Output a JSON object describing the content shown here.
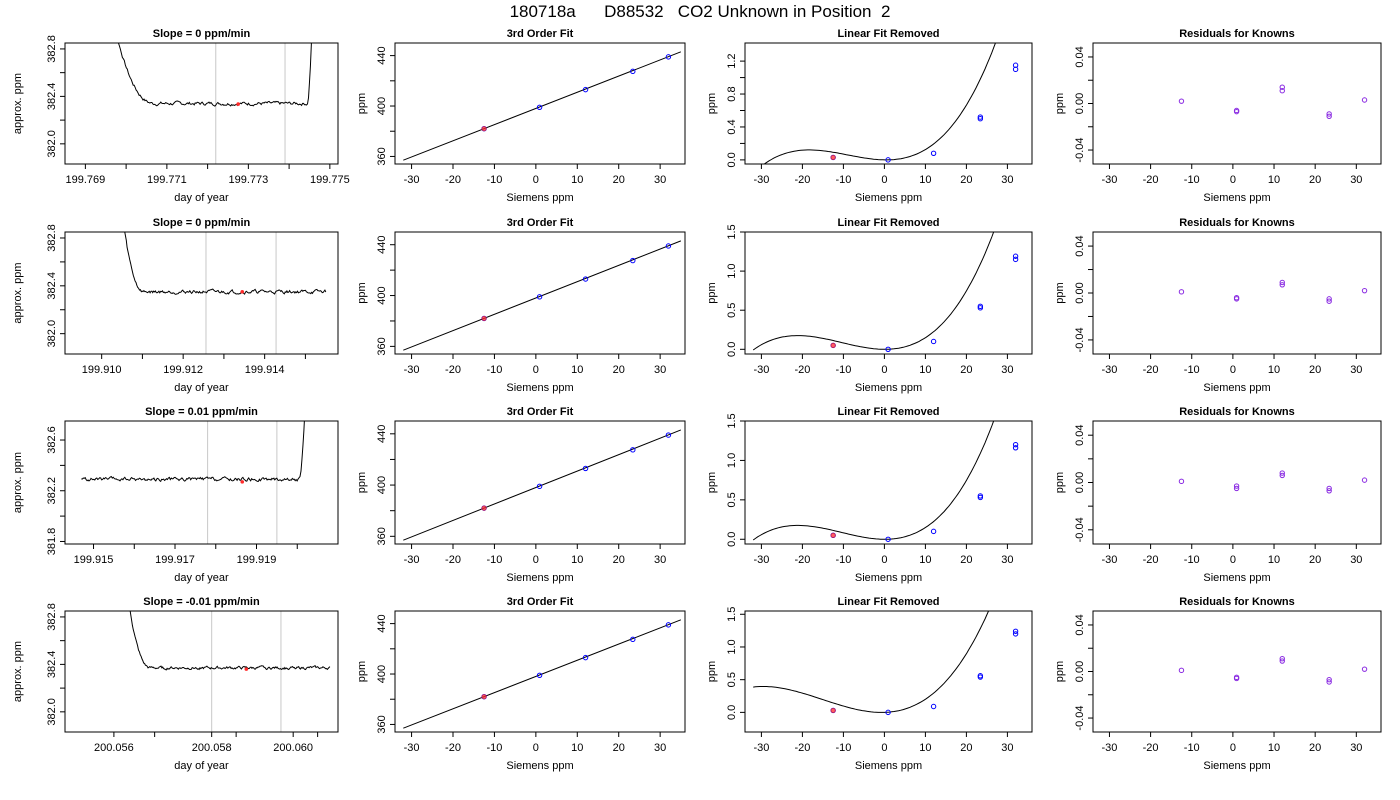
{
  "page_title": "180718a      D88532   CO2 Unknown in Position  2",
  "chart_data": [
    {
      "type": "line",
      "row": 1,
      "col": 1,
      "title": "Slope =  0  ppm/min",
      "xlabel": "day of year",
      "ylabel": "approx. ppm",
      "xlim": [
        199.7685,
        199.7752
      ],
      "ylim": [
        381.83,
        382.85
      ],
      "xticks": [
        {
          "v": 199.769,
          "label": "199.769"
        },
        {
          "v": 199.771,
          "label": "199.771"
        },
        {
          "v": 199.773,
          "label": "199.773"
        },
        {
          "v": 199.775,
          "label": "199.775"
        }
      ],
      "xminor": [
        199.77,
        199.772,
        199.774
      ],
      "yticks": [
        {
          "v": 382.0,
          "label": "382.0"
        },
        {
          "v": 382.4,
          "label": "382.4"
        },
        {
          "v": 382.8,
          "label": "382.8"
        }
      ],
      "yminor": [
        382.2,
        382.6
      ],
      "vlines": [
        199.7722,
        199.7739
      ],
      "trace": {
        "x_start": 199.7694,
        "x_end": 199.7752,
        "baseline": 382.34,
        "noise": 0.012,
        "left_decay": {
          "x0": 199.7694,
          "x1": 199.7707,
          "amp": 1.2
        },
        "right_rise": {
          "x0": 199.77445,
          "x1": 199.7746,
          "amp": 1.0
        }
      },
      "highlight": {
        "x": 199.77275,
        "y": 382.335
      }
    },
    {
      "type": "scatter",
      "row": 1,
      "col": 2,
      "title": "3rd Order Fit",
      "xlabel": "Siemens ppm",
      "ylabel": "ppm",
      "xlim": [
        -34,
        36
      ],
      "ylim": [
        354,
        450
      ],
      "xticks": [
        -30,
        -20,
        -10,
        0,
        10,
        20,
        30
      ],
      "yticks": [
        {
          "v": 360,
          "label": "360"
        },
        {
          "v": 400,
          "label": "400"
        },
        {
          "v": 440,
          "label": "440"
        }
      ],
      "yminor": [
        380,
        420
      ],
      "points": [
        [
          -12.5,
          382
        ],
        [
          0.9,
          399
        ],
        [
          12,
          413
        ],
        [
          23.4,
          427.5
        ],
        [
          32,
          439
        ]
      ],
      "line": {
        "x0": -32,
        "y0": 357,
        "x1": 35,
        "y1": 443
      },
      "unknown": [
        -12.5,
        382
      ]
    },
    {
      "type": "scatter",
      "row": 1,
      "col": 3,
      "title": "Linear Fit Removed",
      "xlabel": "Siemens ppm",
      "ylabel": "ppm",
      "xlim": [
        -34,
        36
      ],
      "ylim": [
        -0.05,
        1.42
      ],
      "xticks": [
        -30,
        -20,
        -10,
        0,
        10,
        20,
        30
      ],
      "yticks": [
        {
          "v": 0.0,
          "label": "0.0"
        },
        {
          "v": 0.4,
          "label": "0.4"
        },
        {
          "v": 0.8,
          "label": "0.8"
        },
        {
          "v": 1.2,
          "label": "1.2"
        }
      ],
      "yminor": [
        0.2,
        0.6,
        1.0
      ],
      "points": [
        [
          -12.5,
          0.03
        ],
        [
          0.9,
          0
        ],
        [
          12,
          0.08
        ],
        [
          23.4,
          0.52
        ],
        [
          23.4,
          0.5
        ],
        [
          32,
          1.1
        ],
        [
          32,
          1.15
        ]
      ],
      "curve": {
        "x_min": -32,
        "x_max": 34.5,
        "coef": [
          3.645e-05,
          0.000979,
          -0.000893,
          0.0
        ]
      },
      "unknown": [
        -12.5,
        0.03
      ]
    },
    {
      "type": "scatter",
      "row": 1,
      "col": 4,
      "title": "Residuals for Knowns",
      "xlabel": "Siemens ppm",
      "ylabel": "ppm",
      "xlim": [
        -34,
        36
      ],
      "ylim": [
        -0.052,
        0.052
      ],
      "xticks": [
        -30,
        -20,
        -10,
        0,
        10,
        20,
        30
      ],
      "yticks": [
        {
          "v": -0.04,
          "label": "-0.04"
        },
        {
          "v": 0.0,
          "label": "0.00"
        },
        {
          "v": 0.04,
          "label": "0.04"
        }
      ],
      "yminor": [
        -0.02,
        0.02
      ],
      "points": [
        [
          -12.5,
          0.002
        ],
        [
          0.9,
          -0.006
        ],
        [
          0.9,
          -0.007
        ],
        [
          12,
          0.014
        ],
        [
          12,
          0.011
        ],
        [
          23.4,
          -0.009
        ],
        [
          23.4,
          -0.011
        ],
        [
          32,
          0.003
        ]
      ]
    },
    {
      "type": "line",
      "row": 2,
      "col": 1,
      "title": "Slope =  0  ppm/min",
      "xlabel": "day of year",
      "ylabel": "approx. ppm",
      "xlim": [
        199.9091,
        199.9158
      ],
      "ylim": [
        381.83,
        382.85
      ],
      "xticks": [
        {
          "v": 199.91,
          "label": "199.910"
        },
        {
          "v": 199.912,
          "label": "199.912"
        },
        {
          "v": 199.914,
          "label": "199.914"
        }
      ],
      "xminor": [
        199.911,
        199.913,
        199.915
      ],
      "yticks": [
        {
          "v": 382.0,
          "label": "382.0"
        },
        {
          "v": 382.4,
          "label": "382.4"
        },
        {
          "v": 382.8,
          "label": "382.8"
        }
      ],
      "yminor": [
        382.2,
        382.6
      ],
      "vlines": [
        199.91256,
        199.91428
      ],
      "trace": {
        "x_start": 199.9103,
        "x_end": 199.9155,
        "baseline": 382.35,
        "noise": 0.012,
        "left_decay": {
          "x0": 199.9103,
          "x1": 199.91105,
          "amp": 1.3
        }
      },
      "highlight": {
        "x": 199.91345,
        "y": 382.35
      }
    },
    {
      "type": "scatter",
      "row": 2,
      "col": 2,
      "title": "3rd Order Fit",
      "xlabel": "Siemens ppm",
      "ylabel": "ppm",
      "xlim": [
        -34,
        36
      ],
      "ylim": [
        354,
        450
      ],
      "xticks": [
        -30,
        -20,
        -10,
        0,
        10,
        20,
        30
      ],
      "yticks": [
        {
          "v": 360,
          "label": "360"
        },
        {
          "v": 400,
          "label": "400"
        },
        {
          "v": 440,
          "label": "440"
        }
      ],
      "yminor": [
        380,
        420
      ],
      "points": [
        [
          -12.5,
          382
        ],
        [
          0.9,
          399
        ],
        [
          12,
          413
        ],
        [
          23.4,
          427.5
        ],
        [
          32,
          439
        ]
      ],
      "line": {
        "x0": -32,
        "y0": 357,
        "x1": 35,
        "y1": 443
      },
      "unknown": [
        -12.5,
        382
      ]
    },
    {
      "type": "scatter",
      "row": 2,
      "col": 3,
      "title": "Linear Fit Removed",
      "xlabel": "Siemens ppm",
      "ylabel": "ppm",
      "xlim": [
        -34,
        36
      ],
      "ylim": [
        -0.06,
        1.5
      ],
      "xticks": [
        -30,
        -20,
        -10,
        0,
        10,
        20,
        30
      ],
      "yticks": [
        {
          "v": 0.0,
          "label": "0.0"
        },
        {
          "v": 0.5,
          "label": "0.5"
        },
        {
          "v": 1.0,
          "label": "1.0"
        },
        {
          "v": 1.5,
          "label": "1.5"
        }
      ],
      "yminor": [],
      "points": [
        [
          -12.5,
          0.05
        ],
        [
          0.9,
          0
        ],
        [
          12,
          0.1
        ],
        [
          23.4,
          0.55
        ],
        [
          23.4,
          0.53
        ],
        [
          32,
          1.15
        ],
        [
          32,
          1.19
        ]
      ],
      "curve": {
        "x_min": -32,
        "x_max": 34.5,
        "coef": [
          3.65e-05,
          0.00115,
          -0.0003,
          0.0
        ]
      },
      "unknown": [
        -12.5,
        0.05
      ]
    },
    {
      "type": "scatter",
      "row": 2,
      "col": 4,
      "title": "Residuals for Knowns",
      "xlabel": "Siemens ppm",
      "ylabel": "ppm",
      "xlim": [
        -34,
        36
      ],
      "ylim": [
        -0.052,
        0.052
      ],
      "xticks": [
        -30,
        -20,
        -10,
        0,
        10,
        20,
        30
      ],
      "yticks": [
        {
          "v": -0.04,
          "label": "-0.04"
        },
        {
          "v": 0.0,
          "label": "0.00"
        },
        {
          "v": 0.04,
          "label": "0.04"
        }
      ],
      "yminor": [
        -0.02,
        0.02
      ],
      "points": [
        [
          -12.5,
          0.001
        ],
        [
          0.9,
          -0.004
        ],
        [
          0.9,
          -0.005
        ],
        [
          12,
          0.009
        ],
        [
          12,
          0.007
        ],
        [
          23.4,
          -0.005
        ],
        [
          23.4,
          -0.007
        ],
        [
          32,
          0.002
        ]
      ]
    },
    {
      "type": "line",
      "row": 3,
      "col": 1,
      "title": "Slope =  0.01  ppm/min",
      "xlabel": "day of year",
      "ylabel": "approx. ppm",
      "xlim": [
        199.9143,
        199.921
      ],
      "ylim": [
        381.78,
        382.75
      ],
      "xticks": [
        {
          "v": 199.915,
          "label": "199.915"
        },
        {
          "v": 199.917,
          "label": "199.917"
        },
        {
          "v": 199.919,
          "label": "199.919"
        }
      ],
      "xminor": [
        199.916,
        199.918,
        199.92
      ],
      "yticks": [
        {
          "v": 381.8,
          "label": "381.8"
        },
        {
          "v": 382.2,
          "label": "382.2"
        },
        {
          "v": 382.6,
          "label": "382.6"
        }
      ],
      "yminor": [
        382.0,
        382.4
      ],
      "vlines": [
        199.9178,
        199.9195
      ],
      "trace": {
        "x_start": 199.9147,
        "x_end": 199.9204,
        "baseline": 382.29,
        "noise": 0.012,
        "right_rise": {
          "x0": 199.92005,
          "x1": 199.9202,
          "amp": 0.6
        }
      },
      "highlight": {
        "x": 199.91865,
        "y": 382.27
      }
    },
    {
      "type": "scatter",
      "row": 3,
      "col": 2,
      "title": "3rd Order Fit",
      "xlabel": "Siemens ppm",
      "ylabel": "ppm",
      "xlim": [
        -34,
        36
      ],
      "ylim": [
        354,
        450
      ],
      "xticks": [
        -30,
        -20,
        -10,
        0,
        10,
        20,
        30
      ],
      "yticks": [
        {
          "v": 360,
          "label": "360"
        },
        {
          "v": 400,
          "label": "400"
        },
        {
          "v": 440,
          "label": "440"
        }
      ],
      "yminor": [
        380,
        420
      ],
      "points": [
        [
          -12.5,
          382
        ],
        [
          0.9,
          399
        ],
        [
          12,
          413
        ],
        [
          23.4,
          427.5
        ],
        [
          32,
          439
        ]
      ],
      "line": {
        "x0": -32,
        "y0": 357,
        "x1": 35,
        "y1": 443
      },
      "unknown": [
        -12.5,
        382
      ]
    },
    {
      "type": "scatter",
      "row": 3,
      "col": 3,
      "title": "Linear Fit Removed",
      "xlabel": "Siemens ppm",
      "ylabel": "ppm",
      "xlim": [
        -34,
        36
      ],
      "ylim": [
        -0.06,
        1.5
      ],
      "xticks": [
        -30,
        -20,
        -10,
        0,
        10,
        20,
        30
      ],
      "yticks": [
        {
          "v": 0.0,
          "label": "0.0"
        },
        {
          "v": 0.5,
          "label": "0.5"
        },
        {
          "v": 1.0,
          "label": "1.0"
        },
        {
          "v": 1.5,
          "label": "1.5"
        }
      ],
      "yminor": [],
      "points": [
        [
          -12.5,
          0.05
        ],
        [
          0.9,
          0
        ],
        [
          12,
          0.1
        ],
        [
          23.4,
          0.55
        ],
        [
          23.4,
          0.53
        ],
        [
          32,
          1.16
        ],
        [
          32,
          1.2
        ]
      ],
      "curve": {
        "x_min": -32,
        "x_max": 34.5,
        "coef": [
          3.65e-05,
          0.00115,
          -0.0003,
          0.0
        ]
      },
      "unknown": [
        -12.5,
        0.05
      ]
    },
    {
      "type": "scatter",
      "row": 3,
      "col": 4,
      "title": "Residuals for Knowns",
      "xlabel": "Siemens ppm",
      "ylabel": "ppm",
      "xlim": [
        -34,
        36
      ],
      "ylim": [
        -0.052,
        0.052
      ],
      "xticks": [
        -30,
        -20,
        -10,
        0,
        10,
        20,
        30
      ],
      "yticks": [
        {
          "v": -0.04,
          "label": "-0.04"
        },
        {
          "v": 0.0,
          "label": "0.00"
        },
        {
          "v": 0.04,
          "label": "0.04"
        }
      ],
      "yminor": [
        -0.02,
        0.02
      ],
      "points": [
        [
          -12.5,
          0.001
        ],
        [
          0.9,
          -0.003
        ],
        [
          0.9,
          -0.005
        ],
        [
          12,
          0.008
        ],
        [
          12,
          0.006
        ],
        [
          23.4,
          -0.005
        ],
        [
          23.4,
          -0.007
        ],
        [
          32,
          0.002
        ]
      ]
    },
    {
      "type": "line",
      "row": 4,
      "col": 1,
      "title": "Slope =  -0.01  ppm/min",
      "xlabel": "day of year",
      "ylabel": "approx. ppm",
      "xlim": [
        200.0548,
        200.0615
      ],
      "ylim": [
        381.83,
        382.85
      ],
      "xticks": [
        {
          "v": 200.056,
          "label": "200.056"
        },
        {
          "v": 200.0584,
          "label": "200.058"
        },
        {
          "v": 200.0604,
          "label": "200.060"
        }
      ],
      "xminor": [
        200.057,
        200.059,
        200.061
      ],
      "yticks": [
        {
          "v": 382.0,
          "label": "382.0"
        },
        {
          "v": 382.4,
          "label": "382.4"
        },
        {
          "v": 382.8,
          "label": "382.8"
        }
      ],
      "yminor": [
        382.2,
        382.6
      ],
      "vlines": [
        200.0584,
        200.0601
      ],
      "trace": {
        "x_start": 200.0562,
        "x_end": 200.0613,
        "baseline": 382.37,
        "noise": 0.01,
        "left_decay": {
          "x0": 200.0562,
          "x1": 200.0569,
          "amp": 1.0
        }
      },
      "highlight": {
        "x": 200.05925,
        "y": 382.36
      }
    },
    {
      "type": "scatter",
      "row": 4,
      "col": 2,
      "title": "3rd Order Fit",
      "xlabel": "Siemens ppm",
      "ylabel": "ppm",
      "xlim": [
        -34,
        36
      ],
      "ylim": [
        354,
        450
      ],
      "xticks": [
        -30,
        -20,
        -10,
        0,
        10,
        20,
        30
      ],
      "yticks": [
        {
          "v": 360,
          "label": "360"
        },
        {
          "v": 400,
          "label": "400"
        },
        {
          "v": 440,
          "label": "440"
        }
      ],
      "yminor": [
        380,
        420
      ],
      "points": [
        [
          -12.5,
          382
        ],
        [
          0.9,
          399
        ],
        [
          12,
          413
        ],
        [
          23.4,
          427.5
        ],
        [
          32,
          439
        ]
      ],
      "line": {
        "x0": -32,
        "y0": 357,
        "x1": 35,
        "y1": 443
      },
      "unknown": [
        -12.5,
        382
      ]
    },
    {
      "type": "scatter",
      "row": 4,
      "col": 3,
      "title": "Linear Fit Removed",
      "xlabel": "Siemens ppm",
      "ylabel": "ppm",
      "xlim": [
        -34,
        36
      ],
      "ylim": [
        -0.3,
        1.55
      ],
      "xticks": [
        -30,
        -20,
        -10,
        0,
        10,
        20,
        30
      ],
      "yticks": [
        {
          "v": 0.0,
          "label": "0.0"
        },
        {
          "v": 0.5,
          "label": "0.5"
        },
        {
          "v": 1.0,
          "label": "1.0"
        },
        {
          "v": 1.5,
          "label": "1.5"
        }
      ],
      "yminor": [],
      "points": [
        [
          -12.5,
          0.03
        ],
        [
          0.9,
          0
        ],
        [
          12,
          0.09
        ],
        [
          23.4,
          0.56
        ],
        [
          23.4,
          0.54
        ],
        [
          32,
          1.2
        ],
        [
          32,
          1.24
        ]
      ],
      "curve": {
        "x_min": -32,
        "x_max": 34.5,
        "coef": [
          3.285e-05,
          0.00149,
          0.00194,
          0.0
        ]
      },
      "unknown": [
        -12.5,
        0.03
      ]
    },
    {
      "type": "scatter",
      "row": 4,
      "col": 4,
      "title": "Residuals for Knowns",
      "xlabel": "Siemens ppm",
      "ylabel": "ppm",
      "xlim": [
        -34,
        36
      ],
      "ylim": [
        -0.052,
        0.052
      ],
      "xticks": [
        -30,
        -20,
        -10,
        0,
        10,
        20,
        30
      ],
      "yticks": [
        {
          "v": -0.04,
          "label": "-0.04"
        },
        {
          "v": 0.0,
          "label": "0.00"
        },
        {
          "v": 0.04,
          "label": "0.04"
        }
      ],
      "yminor": [
        -0.02,
        0.02
      ],
      "points": [
        [
          -12.5,
          0.001
        ],
        [
          0.9,
          -0.005
        ],
        [
          0.9,
          -0.006
        ],
        [
          12,
          0.011
        ],
        [
          12,
          0.009
        ],
        [
          23.4,
          -0.007
        ],
        [
          23.4,
          -0.009
        ],
        [
          32,
          0.002
        ]
      ]
    }
  ],
  "colors": {
    "axis": "#000000",
    "known_point": "#0000ff",
    "residual_point": "#8a2be2",
    "unknown_point": "#ff2a2a",
    "fit_line": "#000000",
    "grid_vline": "#c8c8c8"
  }
}
